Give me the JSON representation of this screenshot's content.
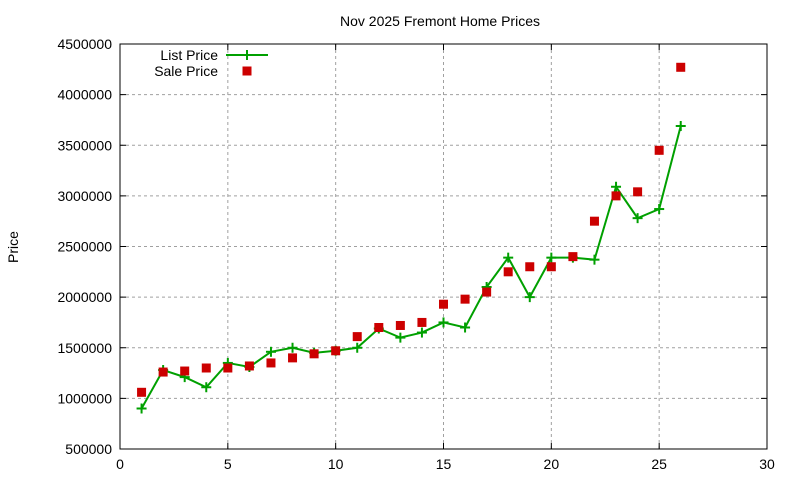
{
  "chart_data": {
    "type": "line",
    "title": "Nov 2025 Fremont Home Prices",
    "xlabel": "",
    "ylabel": "Price",
    "xlim": [
      0,
      30
    ],
    "ylim": [
      500000,
      4500000
    ],
    "xticks": [
      0,
      5,
      10,
      15,
      20,
      25,
      30
    ],
    "yticks": [
      500000,
      1000000,
      1500000,
      2000000,
      2500000,
      3000000,
      3500000,
      4000000,
      4500000
    ],
    "grid": true,
    "legend_position": "top-left",
    "series": [
      {
        "name": "List Price",
        "style": "linespoints",
        "color": "#00a000",
        "x": [
          1,
          2,
          3,
          4,
          5,
          6,
          7,
          8,
          9,
          10,
          11,
          12,
          13,
          14,
          15,
          16,
          17,
          18,
          19,
          20,
          21,
          22,
          23,
          24,
          25,
          26
        ],
        "y": [
          900000,
          1280000,
          1210000,
          1110000,
          1350000,
          1310000,
          1460000,
          1500000,
          1450000,
          1470000,
          1500000,
          1690000,
          1600000,
          1650000,
          1750000,
          1700000,
          2100000,
          2390000,
          2000000,
          2390000,
          2390000,
          2370000,
          3090000,
          2780000,
          2870000,
          3690000
        ]
      },
      {
        "name": "Sale Price",
        "style": "points",
        "color": "#cc0000",
        "x": [
          1,
          2,
          3,
          4,
          5,
          6,
          7,
          8,
          9,
          10,
          11,
          12,
          13,
          14,
          15,
          16,
          17,
          18,
          19,
          20,
          21,
          22,
          23,
          24,
          25,
          26
        ],
        "y": [
          1060000,
          1260000,
          1270000,
          1300000,
          1300000,
          1320000,
          1350000,
          1400000,
          1440000,
          1470000,
          1610000,
          1700000,
          1720000,
          1750000,
          1930000,
          1980000,
          2050000,
          2250000,
          2300000,
          2300000,
          2400000,
          2750000,
          3000000,
          3040000,
          3450000,
          4270000
        ]
      }
    ]
  }
}
